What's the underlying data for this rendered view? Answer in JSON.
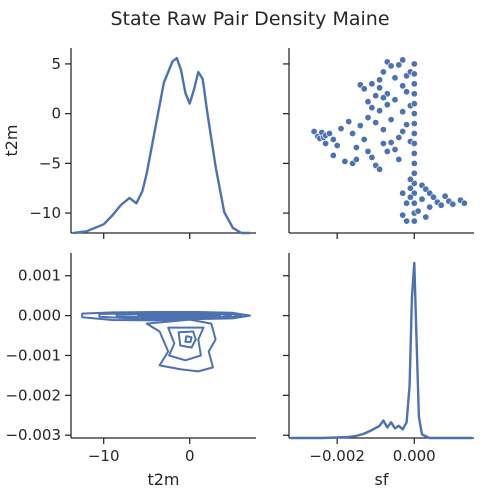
{
  "chart_data": {
    "type": "scatter",
    "title": "State Raw Pair Density Maine",
    "variables": [
      "t2m",
      "sf"
    ],
    "color": "#4c72b0",
    "x_ranges": {
      "t2m": [
        -13.8,
        7.7
      ],
      "sf": [
        -0.00325,
        0.00155
      ]
    },
    "y_ranges": {
      "t2m": [
        -12.0,
        6.6
      ],
      "sf": [
        -0.00307,
        0.00157
      ]
    },
    "ticks": {
      "t2m": {
        "values": [
          -10,
          0
        ],
        "labels": [
          "−10",
          "0"
        ],
        "y_values": [
          5,
          0,
          -5,
          -10
        ],
        "y_labels": [
          "5",
          "0",
          "−5",
          "−10"
        ]
      },
      "sf": {
        "values": [
          -0.002,
          0.0
        ],
        "labels": [
          "−0.002",
          "0.000"
        ],
        "y_values": [
          0.001,
          0.0,
          -0.001,
          -0.002,
          -0.003
        ],
        "y_labels": [
          "0.001",
          "0.000",
          "−0.001",
          "−0.002",
          "−0.003"
        ]
      }
    },
    "panels": [
      {
        "id": "t2m_diag",
        "type": "line",
        "xlabel": "",
        "ylabel": "t2m",
        "x": [
          -13.5,
          -12,
          -11,
          -10,
          -9,
          -8,
          -7,
          -6.2,
          -5.5,
          -5,
          -4,
          -3,
          -2,
          -1.5,
          -1,
          -0.5,
          0,
          0.5,
          1,
          1.5,
          2,
          3,
          4,
          5,
          6,
          7
        ],
        "density": [
          0.0,
          0.01,
          0.03,
          0.05,
          0.1,
          0.16,
          0.2,
          0.17,
          0.24,
          0.34,
          0.6,
          0.86,
          0.98,
          1.0,
          0.93,
          0.8,
          0.74,
          0.82,
          0.92,
          0.88,
          0.7,
          0.38,
          0.12,
          0.03,
          0.0,
          0.0
        ]
      },
      {
        "id": "sf_vs_t2m_scatter",
        "type": "scatter",
        "xlabel": "",
        "ylabel": "",
        "points": [
          [
            -0.0026,
            -1.8
          ],
          [
            -0.0025,
            -2.3
          ],
          [
            -0.00245,
            -2.5
          ],
          [
            -0.0024,
            -1.9
          ],
          [
            -0.00235,
            -2.4
          ],
          [
            -0.0023,
            -2.2
          ],
          [
            -0.0023,
            -3.0
          ],
          [
            -0.0022,
            -2.0
          ],
          [
            -0.0021,
            -2.6
          ],
          [
            -0.002,
            -3.2
          ],
          [
            -0.0021,
            -4.2
          ],
          [
            -0.0018,
            -4.8
          ],
          [
            -0.0016,
            -5.0
          ],
          [
            -0.0015,
            -4.6
          ],
          [
            -0.0019,
            -1.5
          ],
          [
            -0.0017,
            -0.8
          ],
          [
            -0.0016,
            -2.0
          ],
          [
            -0.0015,
            -3.4
          ],
          [
            -0.0014,
            -1.2
          ],
          [
            -0.0013,
            -2.6
          ],
          [
            -0.0012,
            -3.8
          ],
          [
            -0.0011,
            -4.4
          ],
          [
            -0.001,
            -5.2
          ],
          [
            -0.0009,
            -5.6
          ],
          [
            -0.0008,
            -3.0
          ],
          [
            -0.0014,
            2.9
          ],
          [
            -0.0013,
            2.5
          ],
          [
            -0.0012,
            1.2
          ],
          [
            -0.0011,
            3.0
          ],
          [
            -0.001,
            1.8
          ],
          [
            -0.0009,
            2.6
          ],
          [
            -0.0008,
            4.2
          ],
          [
            -0.0007,
            5.2
          ],
          [
            -0.0006,
            4.8
          ],
          [
            -0.0005,
            3.6
          ],
          [
            -0.0004,
            4.9
          ],
          [
            -0.0003,
            5.4
          ],
          [
            -0.0002,
            2.2
          ],
          [
            -0.0012,
            -0.4
          ],
          [
            -0.0011,
            0.6
          ],
          [
            -0.001,
            -0.9
          ],
          [
            -0.0009,
            0.3
          ],
          [
            -0.0008,
            -1.6
          ],
          [
            -0.0007,
            0.9
          ],
          [
            -0.0006,
            -0.6
          ],
          [
            -0.0005,
            1.4
          ],
          [
            -0.0004,
            -2.4
          ],
          [
            -0.0003,
            0.2
          ],
          [
            -0.0002,
            -1.1
          ],
          [
            -0.0001,
            0.8
          ],
          [
            -0.0009,
            3.4
          ],
          [
            -0.0007,
            2.0
          ],
          [
            -0.0005,
            -3.6
          ],
          [
            -0.0004,
            -4.6
          ],
          [
            -0.0003,
            -1.8
          ],
          [
            -0.0002,
            3.8
          ],
          [
            -0.0001,
            -2.8
          ],
          [
            -0.0006,
            -2.9
          ],
          [
            -0.0007,
            -3.8
          ],
          [
            -0.0008,
            1.6
          ],
          [
            -0.0003,
            2.8
          ],
          [
            -0.0001,
            4.2
          ],
          [
            0.0,
            5.0
          ],
          [
            0.0,
            4.0
          ],
          [
            0.0,
            3.0
          ],
          [
            0.0,
            2.0
          ],
          [
            0.0,
            1.0
          ],
          [
            0.0,
            0.0
          ],
          [
            0.0,
            -1.0
          ],
          [
            0.0,
            -2.0
          ],
          [
            0.0,
            -3.0
          ],
          [
            0.0,
            -4.0
          ],
          [
            0.0,
            -5.0
          ],
          [
            0.0,
            -6.0
          ],
          [
            0.0,
            -7.0
          ],
          [
            0.0,
            -8.0
          ],
          [
            0.0,
            -9.0
          ],
          [
            0.0,
            -10.0
          ],
          [
            0.0,
            -10.8
          ],
          [
            -0.0001,
            -7.5
          ],
          [
            -0.0002,
            -9.0
          ],
          [
            -0.0003,
            -10.2
          ],
          [
            -0.0002,
            -10.8
          ],
          [
            -0.0001,
            -8.4
          ],
          [
            -0.0003,
            -8.0
          ],
          [
            -0.0001,
            -6.6
          ],
          [
            0.0002,
            -7.2
          ],
          [
            0.0003,
            -7.6
          ],
          [
            0.0004,
            -8.0
          ],
          [
            0.0005,
            -8.4
          ],
          [
            0.0006,
            -8.9
          ],
          [
            0.0007,
            -9.2
          ],
          [
            0.0008,
            -8.3
          ],
          [
            0.0009,
            -8.8
          ],
          [
            0.001,
            -9.1
          ],
          [
            0.0012,
            -8.7
          ],
          [
            0.0013,
            -9.0
          ],
          [
            0.0002,
            -8.6
          ],
          [
            0.0004,
            -9.4
          ],
          [
            0.0001,
            -9.8
          ],
          [
            0.0003,
            -10.4
          ]
        ]
      },
      {
        "id": "t2m_vs_sf_kde",
        "type": "contour",
        "xlabel": "t2m",
        "ylabel": "",
        "contours": [
          [
            [
              -12.5,
              5e-05
            ],
            [
              -9,
              8e-05
            ],
            [
              -4,
              9e-05
            ],
            [
              1,
              9e-05
            ],
            [
              5,
              7e-05
            ],
            [
              7,
              0.0
            ],
            [
              5,
              -7e-05
            ],
            [
              0,
              -9e-05
            ],
            [
              -4,
              -0.00012
            ],
            [
              -9,
              -0.00011
            ],
            [
              -12.5,
              -4e-05
            ],
            [
              -12.5,
              5e-05
            ]
          ],
          [
            [
              -10.5,
              4e-05
            ],
            [
              -6,
              6e-05
            ],
            [
              0,
              6e-05
            ],
            [
              4.5,
              5e-05
            ],
            [
              6,
              0.0
            ],
            [
              4.5,
              -5e-05
            ],
            [
              0,
              -7e-05
            ],
            [
              -6,
              -8e-05
            ],
            [
              -10.5,
              -3e-05
            ],
            [
              -10.5,
              4e-05
            ]
          ],
          [
            [
              -8.5,
              3e-05
            ],
            [
              -4,
              4e-05
            ],
            [
              1,
              4e-05
            ],
            [
              4,
              3e-05
            ],
            [
              4.8,
              0.0
            ],
            [
              3.5,
              -4e-05
            ],
            [
              -2,
              -5e-05
            ],
            [
              -8.5,
              -2e-05
            ],
            [
              -8.5,
              3e-05
            ]
          ],
          [
            [
              -6,
              2e-05
            ],
            [
              -2,
              3e-05
            ],
            [
              2,
              3e-05
            ],
            [
              3.5,
              0.0
            ],
            [
              2,
              -3e-05
            ],
            [
              -2,
              -3e-05
            ],
            [
              -6,
              -1e-05
            ],
            [
              -6,
              2e-05
            ]
          ],
          [
            [
              -3,
              2e-05
            ],
            [
              0,
              2e-05
            ],
            [
              2.5,
              1e-05
            ],
            [
              2.2,
              -2e-05
            ],
            [
              -1,
              -2e-05
            ],
            [
              -3,
              -1e-05
            ],
            [
              -3,
              2e-05
            ]
          ],
          [
            [
              -0.8,
              1e-05
            ],
            [
              0.8,
              1e-05
            ],
            [
              1.2,
              -1e-05
            ],
            [
              -0.2,
              -1e-05
            ],
            [
              -0.8,
              1e-05
            ]
          ],
          [
            [
              -5,
              -0.0002
            ],
            [
              -3.5,
              -0.0004
            ],
            [
              -2.5,
              -0.0009
            ],
            [
              -3.5,
              -0.00125
            ],
            [
              -1,
              -0.00135
            ],
            [
              1,
              -0.0014
            ],
            [
              2.7,
              -0.0013
            ],
            [
              2.2,
              -0.0009
            ],
            [
              3,
              -0.0006
            ],
            [
              2.5,
              -0.0002
            ],
            [
              0,
              -0.0001
            ],
            [
              -5,
              -0.0002
            ]
          ],
          [
            [
              -2.5,
              -0.0003
            ],
            [
              -1.8,
              -0.0007
            ],
            [
              -2.4,
              -0.001
            ],
            [
              -0.5,
              -0.00112
            ],
            [
              1.3,
              -0.001
            ],
            [
              1.0,
              -0.0006
            ],
            [
              1.6,
              -0.0003
            ],
            [
              -2.5,
              -0.0003
            ]
          ],
          [
            [
              -1.3,
              -0.00042
            ],
            [
              -1.1,
              -0.00075
            ],
            [
              0.2,
              -0.0008
            ],
            [
              0.7,
              -0.0006
            ],
            [
              0.4,
              -0.0004
            ],
            [
              -1.3,
              -0.00042
            ]
          ],
          [
            [
              -0.4,
              -0.00052
            ],
            [
              -0.5,
              -0.00066
            ],
            [
              0.1,
              -0.00066
            ],
            [
              0.2,
              -0.00054
            ],
            [
              -0.4,
              -0.00052
            ]
          ]
        ]
      },
      {
        "id": "sf_diag",
        "type": "line",
        "xlabel": "sf",
        "ylabel": "",
        "x": [
          -0.0032,
          -0.0028,
          -0.0024,
          -0.002,
          -0.0017,
          -0.0015,
          -0.0013,
          -0.0011,
          -0.0009,
          -0.0008,
          -0.0007,
          -0.0006,
          -0.0005,
          -0.0004,
          -0.0003,
          -0.0002,
          -0.00012,
          -6e-05,
          0.0,
          6e-05,
          0.00012,
          0.0002,
          0.0004,
          0.0008,
          0.0012,
          0.0015
        ],
        "density": [
          0.0,
          0.0,
          0.0,
          0.003,
          0.006,
          0.012,
          0.025,
          0.045,
          0.07,
          0.1,
          0.06,
          0.09,
          0.055,
          0.07,
          0.05,
          0.09,
          0.3,
          0.8,
          1.0,
          0.55,
          0.12,
          0.02,
          0.0,
          0.0,
          0.0,
          0.0
        ]
      }
    ]
  }
}
